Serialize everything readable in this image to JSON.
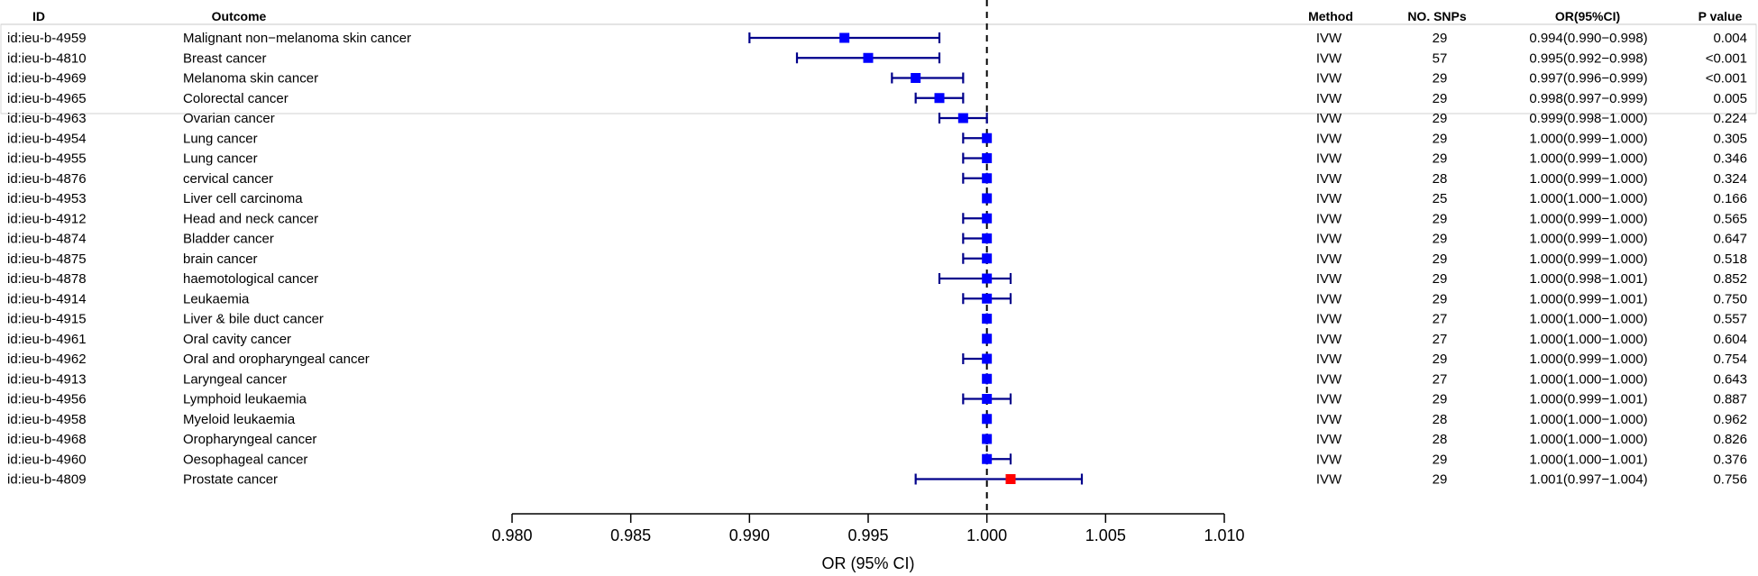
{
  "table": {
    "headers": {
      "id": "ID",
      "outcome": "Outcome",
      "method": "Method",
      "nsnps": "NO. SNPs",
      "or": "OR(95%CI)",
      "pvalue": "P value"
    }
  },
  "chart_data": {
    "type": "forest",
    "xlabel": "OR (95% CI)",
    "xlim": [
      0.98,
      1.01
    ],
    "xticks": [
      "0.980",
      "0.985",
      "0.990",
      "0.995",
      "1.000",
      "1.005",
      "1.010"
    ],
    "reference_line": 1.0,
    "marker_color": "#0000ff",
    "highlight_color": "#ff0000",
    "ci_color": "#00008b",
    "rows": [
      {
        "id": "id:ieu-b-4959",
        "outcome": "Malignant non−melanoma skin cancer",
        "method": "IVW",
        "nsnps": "29",
        "or_text": "0.994(0.990−0.998)",
        "p": "0.004",
        "or": 0.994,
        "lo": 0.99,
        "hi": 0.998,
        "highlight": false
      },
      {
        "id": "id:ieu-b-4810",
        "outcome": "Breast cancer",
        "method": "IVW",
        "nsnps": "57",
        "or_text": "0.995(0.992−0.998)",
        "p": "<0.001",
        "or": 0.995,
        "lo": 0.992,
        "hi": 0.998,
        "highlight": false
      },
      {
        "id": "id:ieu-b-4969",
        "outcome": "Melanoma skin cancer",
        "method": "IVW",
        "nsnps": "29",
        "or_text": "0.997(0.996−0.999)",
        "p": "<0.001",
        "or": 0.997,
        "lo": 0.996,
        "hi": 0.999,
        "highlight": false
      },
      {
        "id": "id:ieu-b-4965",
        "outcome": "Colorectal cancer",
        "method": "IVW",
        "nsnps": "29",
        "or_text": "0.998(0.997−0.999)",
        "p": "0.005",
        "or": 0.998,
        "lo": 0.997,
        "hi": 0.999,
        "highlight": false
      },
      {
        "id": "id:ieu-b-4963",
        "outcome": "Ovarian cancer",
        "method": "IVW",
        "nsnps": "29",
        "or_text": "0.999(0.998−1.000)",
        "p": "0.224",
        "or": 0.999,
        "lo": 0.998,
        "hi": 1.0,
        "highlight": false
      },
      {
        "id": "id:ieu-b-4954",
        "outcome": "Lung cancer",
        "method": "IVW",
        "nsnps": "29",
        "or_text": "1.000(0.999−1.000)",
        "p": "0.305",
        "or": 1.0,
        "lo": 0.999,
        "hi": 1.0,
        "highlight": false
      },
      {
        "id": "id:ieu-b-4955",
        "outcome": "Lung cancer",
        "method": "IVW",
        "nsnps": "29",
        "or_text": "1.000(0.999−1.000)",
        "p": "0.346",
        "or": 1.0,
        "lo": 0.999,
        "hi": 1.0,
        "highlight": false
      },
      {
        "id": "id:ieu-b-4876",
        "outcome": "cervical cancer",
        "method": "IVW",
        "nsnps": "28",
        "or_text": "1.000(0.999−1.000)",
        "p": "0.324",
        "or": 1.0,
        "lo": 0.999,
        "hi": 1.0,
        "highlight": false
      },
      {
        "id": "id:ieu-b-4953",
        "outcome": "Liver cell carcinoma",
        "method": "IVW",
        "nsnps": "25",
        "or_text": "1.000(1.000−1.000)",
        "p": "0.166",
        "or": 1.0,
        "lo": 1.0,
        "hi": 1.0,
        "highlight": false
      },
      {
        "id": "id:ieu-b-4912",
        "outcome": "Head and neck cancer",
        "method": "IVW",
        "nsnps": "29",
        "or_text": "1.000(0.999−1.000)",
        "p": "0.565",
        "or": 1.0,
        "lo": 0.999,
        "hi": 1.0,
        "highlight": false
      },
      {
        "id": "id:ieu-b-4874",
        "outcome": "Bladder cancer",
        "method": "IVW",
        "nsnps": "29",
        "or_text": "1.000(0.999−1.000)",
        "p": "0.647",
        "or": 1.0,
        "lo": 0.999,
        "hi": 1.0,
        "highlight": false
      },
      {
        "id": "id:ieu-b-4875",
        "outcome": "brain cancer",
        "method": "IVW",
        "nsnps": "29",
        "or_text": "1.000(0.999−1.000)",
        "p": "0.518",
        "or": 1.0,
        "lo": 0.999,
        "hi": 1.0,
        "highlight": false
      },
      {
        "id": "id:ieu-b-4878",
        "outcome": "haemotological cancer",
        "method": "IVW",
        "nsnps": "29",
        "or_text": "1.000(0.998−1.001)",
        "p": "0.852",
        "or": 1.0,
        "lo": 0.998,
        "hi": 1.001,
        "highlight": false
      },
      {
        "id": "id:ieu-b-4914",
        "outcome": "Leukaemia",
        "method": "IVW",
        "nsnps": "29",
        "or_text": "1.000(0.999−1.001)",
        "p": "0.750",
        "or": 1.0,
        "lo": 0.999,
        "hi": 1.001,
        "highlight": false
      },
      {
        "id": "id:ieu-b-4915",
        "outcome": "Liver & bile duct cancer",
        "method": "IVW",
        "nsnps": "27",
        "or_text": "1.000(1.000−1.000)",
        "p": "0.557",
        "or": 1.0,
        "lo": 1.0,
        "hi": 1.0,
        "highlight": false
      },
      {
        "id": "id:ieu-b-4961",
        "outcome": "Oral cavity cancer",
        "method": "IVW",
        "nsnps": "27",
        "or_text": "1.000(1.000−1.000)",
        "p": "0.604",
        "or": 1.0,
        "lo": 1.0,
        "hi": 1.0,
        "highlight": false
      },
      {
        "id": "id:ieu-b-4962",
        "outcome": "Oral and oropharyngeal cancer",
        "method": "IVW",
        "nsnps": "29",
        "or_text": "1.000(0.999−1.000)",
        "p": "0.754",
        "or": 1.0,
        "lo": 0.999,
        "hi": 1.0,
        "highlight": false
      },
      {
        "id": "id:ieu-b-4913",
        "outcome": "Laryngeal cancer",
        "method": "IVW",
        "nsnps": "27",
        "or_text": "1.000(1.000−1.000)",
        "p": "0.643",
        "or": 1.0,
        "lo": 1.0,
        "hi": 1.0,
        "highlight": false
      },
      {
        "id": "id:ieu-b-4956",
        "outcome": "Lymphoid leukaemia",
        "method": "IVW",
        "nsnps": "29",
        "or_text": "1.000(0.999−1.001)",
        "p": "0.887",
        "or": 1.0,
        "lo": 0.999,
        "hi": 1.001,
        "highlight": false
      },
      {
        "id": "id:ieu-b-4958",
        "outcome": "Myeloid leukaemia",
        "method": "IVW",
        "nsnps": "28",
        "or_text": "1.000(1.000−1.000)",
        "p": "0.962",
        "or": 1.0,
        "lo": 1.0,
        "hi": 1.0,
        "highlight": false
      },
      {
        "id": "id:ieu-b-4968",
        "outcome": "Oropharyngeal cancer",
        "method": "IVW",
        "nsnps": "28",
        "or_text": "1.000(1.000−1.000)",
        "p": "0.826",
        "or": 1.0,
        "lo": 1.0,
        "hi": 1.0,
        "highlight": false
      },
      {
        "id": "id:ieu-b-4960",
        "outcome": "Oesophageal cancer",
        "method": "IVW",
        "nsnps": "29",
        "or_text": "1.000(1.000−1.001)",
        "p": "0.376",
        "or": 1.0,
        "lo": 1.0,
        "hi": 1.001,
        "highlight": false
      },
      {
        "id": "id:ieu-b-4809",
        "outcome": "Prostate cancer",
        "method": "IVW",
        "nsnps": "29",
        "or_text": "1.001(0.997−1.004)",
        "p": "0.756",
        "or": 1.001,
        "lo": 0.997,
        "hi": 1.004,
        "highlight": true
      }
    ]
  }
}
